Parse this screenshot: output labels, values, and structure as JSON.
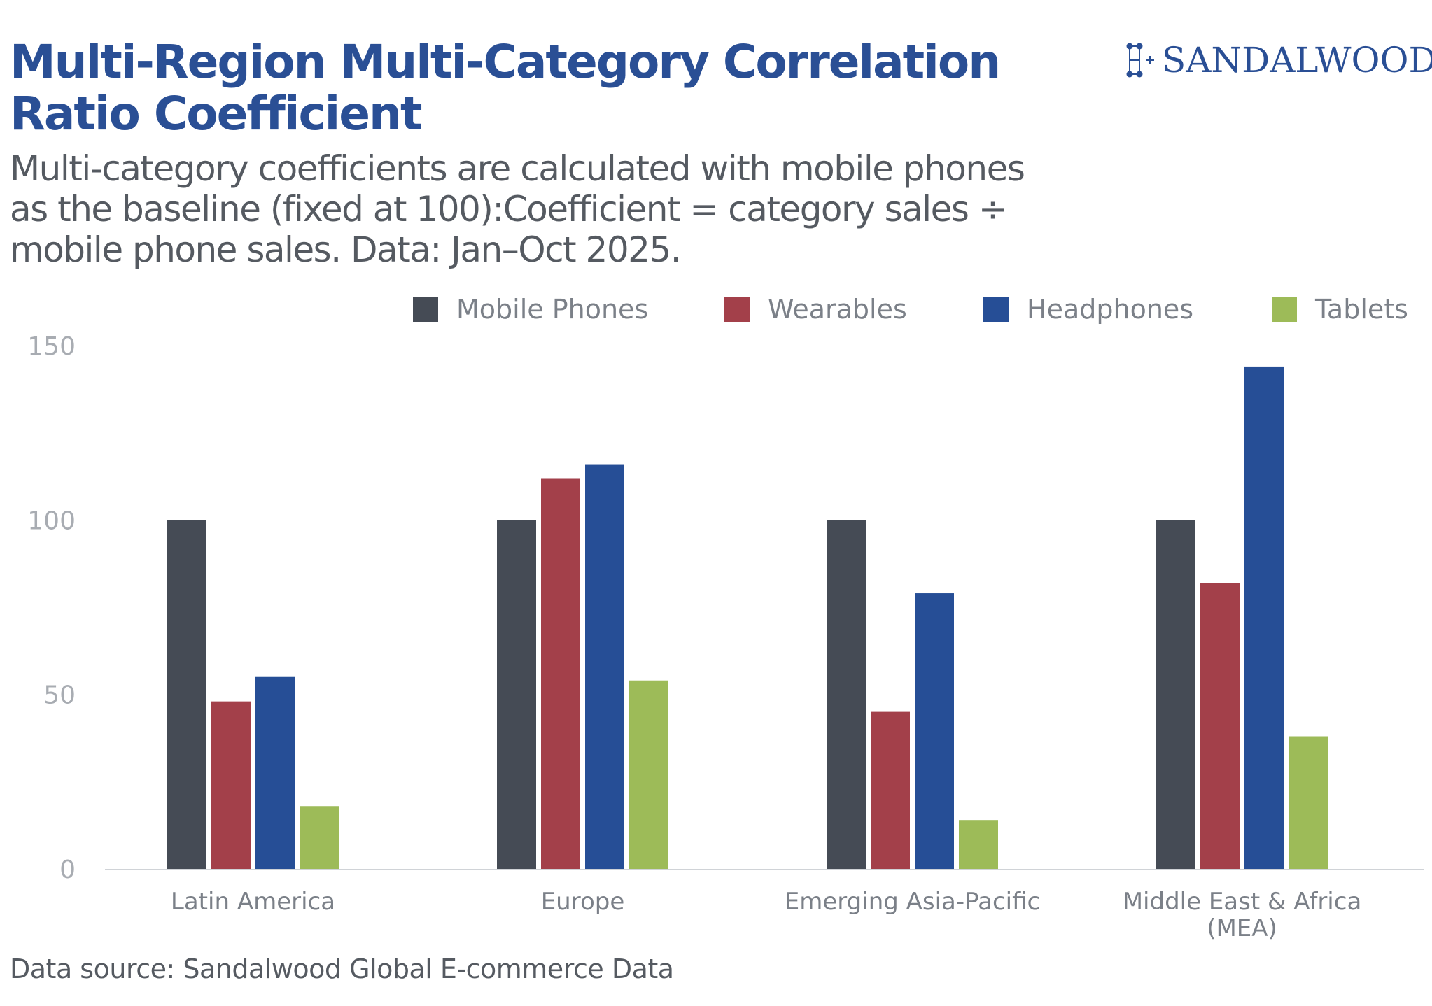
{
  "header": {
    "title": "Multi-Region Multi-Category Correlation Ratio Coefficient",
    "subtitle": "Multi-category coefficients are calculated with mobile phones as the baseline (fixed at 100):Coefficient = category sales ÷ mobile phone sales. Data: Jan–Oct 2025.",
    "brand": "SANDALWOOD"
  },
  "footer": {
    "source": "Data source: Sandalwood Global E-commerce Data"
  },
  "colors": {
    "title": "#2a4f95",
    "Mobile Phones": "#454b55",
    "Wearables": "#a3404a",
    "Headphones": "#264e96",
    "Tablets": "#9dbb58",
    "axis": "#d0d3d7"
  },
  "chart_data": {
    "type": "bar",
    "title": "Multi-Region Multi-Category Correlation Ratio Coefficient",
    "xlabel": "",
    "ylabel": "",
    "ylim": [
      0,
      150
    ],
    "yticks": [
      0,
      50,
      100,
      150
    ],
    "grid": false,
    "legend_position": "top-right",
    "categories": [
      [
        "Latin America"
      ],
      [
        "Europe"
      ],
      [
        "Emerging Asia-Pacific"
      ],
      [
        "Middle East & Africa",
        "(MEA)"
      ]
    ],
    "series": [
      {
        "name": "Mobile Phones",
        "values": [
          100,
          100,
          100,
          100
        ]
      },
      {
        "name": "Wearables",
        "values": [
          48,
          112,
          45,
          82
        ]
      },
      {
        "name": "Headphones",
        "values": [
          55,
          116,
          79,
          144
        ]
      },
      {
        "name": "Tablets",
        "values": [
          18,
          54,
          14,
          38
        ]
      }
    ]
  }
}
